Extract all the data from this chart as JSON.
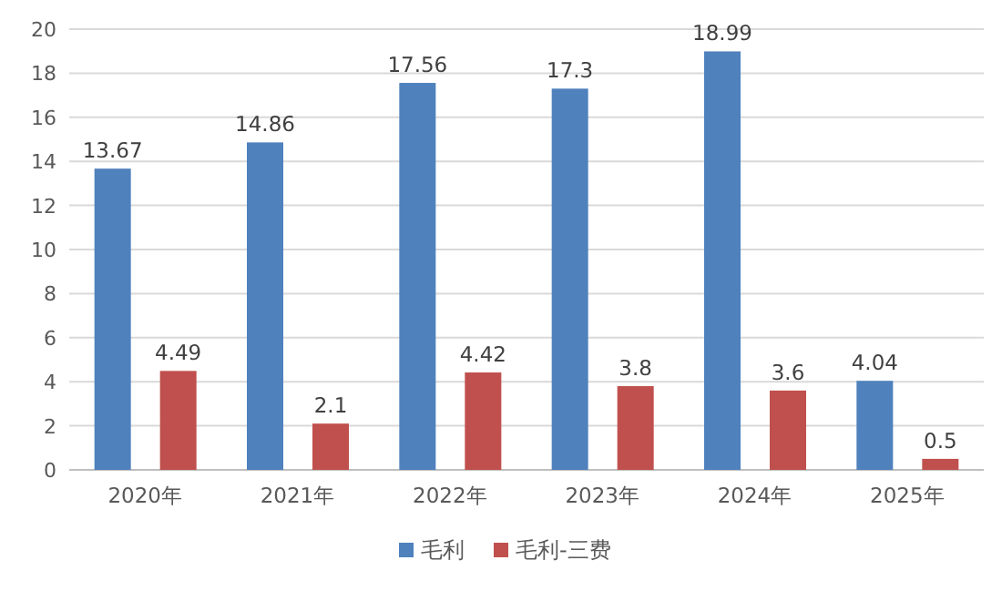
{
  "chart_data": {
    "type": "bar",
    "categories": [
      "2020年",
      "2021年",
      "2022年",
      "2023年",
      "2024年",
      "2025年"
    ],
    "series": [
      {
        "name": "毛利",
        "color": "#4f81bd",
        "values": [
          13.67,
          14.86,
          17.56,
          17.3,
          18.99,
          4.04
        ]
      },
      {
        "name": "毛利-三费",
        "color": "#c0504d",
        "values": [
          4.49,
          2.1,
          4.42,
          3.8,
          3.6,
          0.5
        ]
      }
    ],
    "ylim": [
      0,
      20
    ],
    "yticks": [
      0,
      2,
      4,
      6,
      8,
      10,
      12,
      14,
      16,
      18,
      20
    ],
    "grid": "y",
    "legend": "bottom",
    "data_labels": true
  }
}
